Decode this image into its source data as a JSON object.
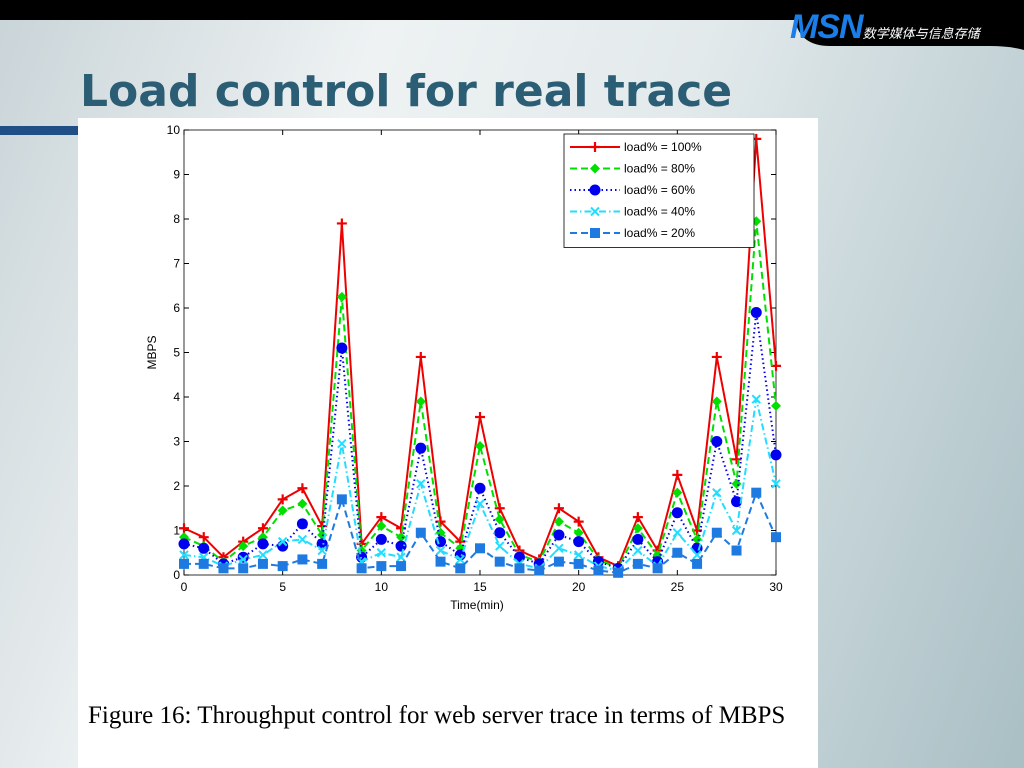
{
  "logo": {
    "brand": "MSN",
    "subtitle": "数学媒体与信息存储"
  },
  "title": "Load control for real trace",
  "chart_data": {
    "type": "line",
    "xlabel": "Time(min)",
    "ylabel": "MBPS",
    "x": [
      0,
      1,
      2,
      3,
      4,
      5,
      6,
      7,
      8,
      9,
      10,
      11,
      12,
      13,
      14,
      15,
      16,
      17,
      18,
      19,
      20,
      21,
      22,
      23,
      24,
      25,
      26,
      27,
      28,
      29,
      30
    ],
    "xlim": [
      0,
      30
    ],
    "xticks": [
      0,
      5,
      10,
      15,
      20,
      25,
      30
    ],
    "ylim": [
      0,
      10
    ],
    "yticks": [
      0,
      1,
      2,
      3,
      4,
      5,
      6,
      7,
      8,
      9,
      10
    ],
    "legend": "upper right",
    "series": [
      {
        "name": "load% = 100%",
        "color": "#ee0000",
        "marker": "plus",
        "linestyle": "solid",
        "values": [
          1.05,
          0.85,
          0.4,
          0.75,
          1.05,
          1.7,
          1.95,
          1.1,
          7.9,
          0.7,
          1.3,
          1.05,
          4.9,
          1.2,
          0.75,
          3.55,
          1.5,
          0.55,
          0.35,
          1.5,
          1.2,
          0.4,
          0.2,
          1.3,
          0.55,
          2.25,
          1.0,
          4.9,
          2.6,
          9.8,
          4.7
        ]
      },
      {
        "name": "load% = 80%",
        "color": "#00e000",
        "marker": "diamond",
        "linestyle": "dashed",
        "values": [
          0.85,
          0.65,
          0.3,
          0.65,
          0.85,
          1.45,
          1.6,
          0.9,
          6.25,
          0.55,
          1.1,
          0.85,
          3.9,
          0.95,
          0.6,
          2.9,
          1.25,
          0.45,
          0.3,
          1.2,
          0.95,
          0.35,
          0.15,
          1.05,
          0.45,
          1.85,
          0.8,
          3.9,
          2.05,
          7.95,
          3.8
        ]
      },
      {
        "name": "load% = 60%",
        "color": "#0000ee",
        "marker": "circle",
        "linestyle": "dotted",
        "values": [
          0.7,
          0.6,
          0.25,
          0.4,
          0.7,
          0.65,
          1.15,
          0.7,
          5.1,
          0.4,
          0.8,
          0.65,
          2.85,
          0.75,
          0.45,
          1.95,
          0.95,
          0.4,
          0.25,
          0.9,
          0.75,
          0.3,
          0.15,
          0.8,
          0.3,
          1.4,
          0.6,
          3.0,
          1.65,
          5.9,
          2.7
        ]
      },
      {
        "name": "load% = 40%",
        "color": "#22ddff",
        "marker": "x",
        "linestyle": "dashdot",
        "values": [
          0.45,
          0.4,
          0.2,
          0.35,
          0.45,
          0.75,
          0.8,
          0.55,
          2.95,
          0.3,
          0.5,
          0.4,
          2.05,
          0.55,
          0.35,
          1.6,
          0.65,
          0.25,
          0.15,
          0.6,
          0.45,
          0.2,
          0.1,
          0.55,
          0.2,
          0.95,
          0.45,
          1.85,
          1.0,
          3.95,
          2.05
        ]
      },
      {
        "name": "load% = 20%",
        "color": "#1e7ae0",
        "marker": "square",
        "linestyle": "dashed",
        "values": [
          0.25,
          0.25,
          0.15,
          0.15,
          0.25,
          0.2,
          0.35,
          0.25,
          1.7,
          0.15,
          0.2,
          0.2,
          0.95,
          0.3,
          0.15,
          0.6,
          0.3,
          0.15,
          0.1,
          0.3,
          0.25,
          0.1,
          0.05,
          0.25,
          0.15,
          0.5,
          0.25,
          0.95,
          0.55,
          1.85,
          0.85
        ]
      }
    ]
  },
  "caption": "Figure 16: Throughput control for web server trace in terms of MBPS"
}
